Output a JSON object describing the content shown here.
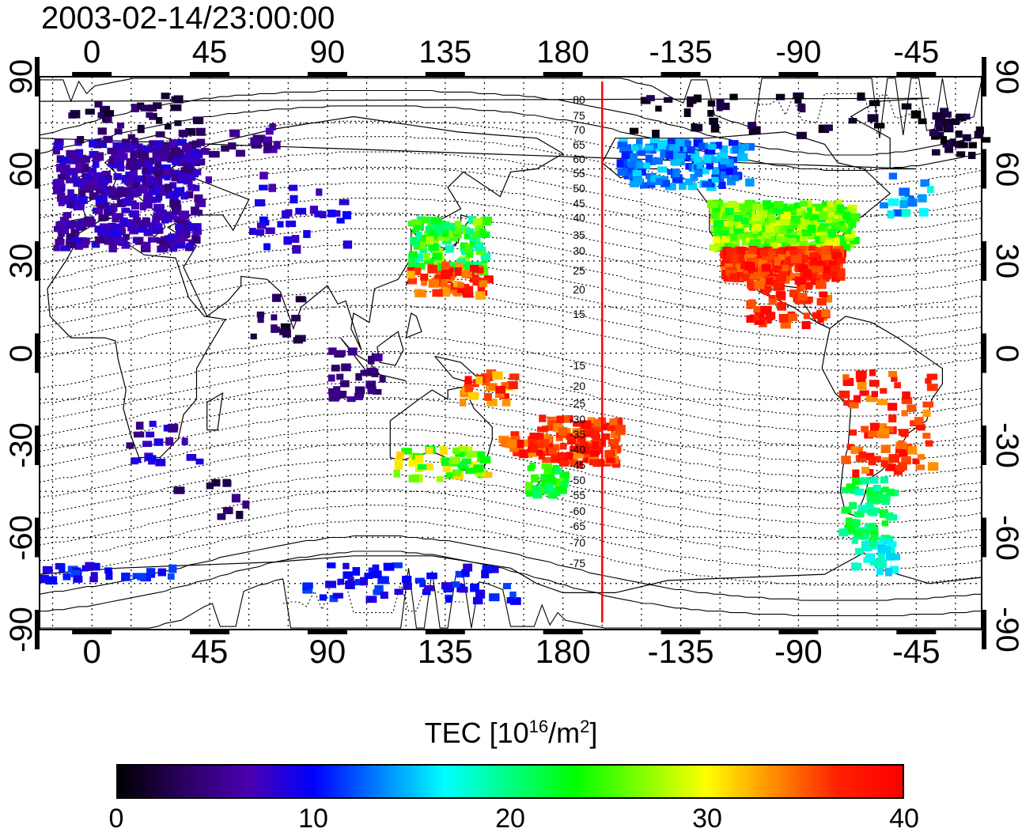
{
  "map": {
    "timestamp": "2003-02-14/23:00:00",
    "top_ticks": [
      "0",
      "45",
      "90",
      "135",
      "180",
      "-135",
      "-90",
      "-45"
    ],
    "bottom_ticks": [
      "0",
      "45",
      "90",
      "135",
      "180",
      "-135",
      "-90",
      "-45"
    ],
    "left_ticks": [
      "90",
      "60",
      "30",
      "0",
      "-30",
      "-60",
      "-90"
    ],
    "right_ticks": [
      "90",
      "60",
      "30",
      "0",
      "-30",
      "-60",
      "-90"
    ],
    "contour_labels_north": [
      "80",
      "75",
      "70",
      "65",
      "60",
      "55",
      "50",
      "45",
      "40",
      "35",
      "30",
      "25",
      "20",
      "15"
    ],
    "contour_labels_south": [
      "-15",
      "-20",
      "-25",
      "-30",
      "-35",
      "-40",
      "-45",
      "-50",
      "-55",
      "-60",
      "-65",
      "-70",
      "-75"
    ],
    "meridian_line_color": "#ff0000",
    "meridian_longitude": -165
  },
  "colorbar": {
    "title_prefix": "TEC  [10",
    "title_exp1": "16",
    "title_mid": "/m",
    "title_exp2": "2",
    "title_suffix": "]",
    "min": 0,
    "max": 40,
    "tick_labels": [
      "0",
      "10",
      "20",
      "30",
      "40"
    ],
    "colors": [
      "#000000",
      "#2a0060",
      "#4a00b0",
      "#0000ff",
      "#0080ff",
      "#00ffff",
      "#00ff80",
      "#00ff00",
      "#80ff00",
      "#ffff00",
      "#ff9000",
      "#ff2000",
      "#ff0000"
    ]
  }
}
